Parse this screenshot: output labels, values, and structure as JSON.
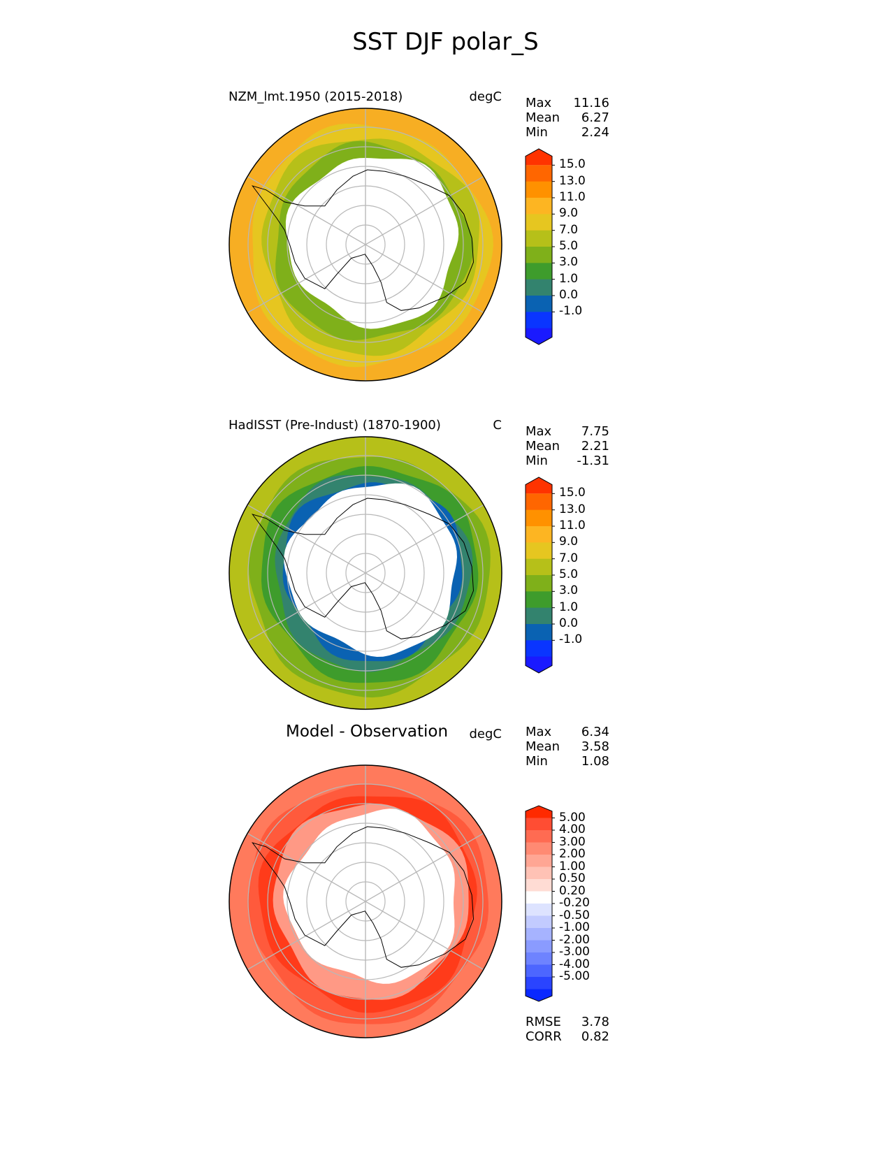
{
  "title": "SST DJF polar_S",
  "panels": [
    {
      "id": "model",
      "title": "NZM_lmt.1950 (2015-2018)",
      "units": "degC",
      "stats": [
        {
          "label": "Max",
          "value": "11.16"
        },
        {
          "label": "Mean",
          "value": "6.27"
        },
        {
          "label": "Min",
          "value": "2.24"
        }
      ],
      "colorbar": {
        "ticks": [
          "15.0",
          "13.0",
          "11.0",
          "9.0",
          "7.0",
          "5.0",
          "3.0",
          "1.0",
          "0.0",
          "-1.0"
        ],
        "colors": [
          "#ff3300",
          "#ff6600",
          "#ff9100",
          "#fdb522",
          "#e6c620",
          "#b6c019",
          "#7fb01a",
          "#3e9c2c",
          "#33836e",
          "#0a62b2",
          "#0a35ff",
          "#1a1aff"
        ]
      },
      "colors": {
        "outer": "#f7ae23",
        "band2": "#e6c620",
        "band3": "#b6c019",
        "band4": "#7fb01a"
      }
    },
    {
      "id": "obs",
      "title": "HadISST (Pre-Indust) (1870-1900)",
      "units": "C",
      "stats": [
        {
          "label": "Max",
          "value": "7.75"
        },
        {
          "label": "Mean",
          "value": "2.21"
        },
        {
          "label": "Min",
          "value": "-1.31"
        }
      ],
      "colorbar": {
        "ticks": [
          "15.0",
          "13.0",
          "11.0",
          "9.0",
          "7.0",
          "5.0",
          "3.0",
          "1.0",
          "0.0",
          "-1.0"
        ],
        "colors": [
          "#ff3300",
          "#ff6600",
          "#ff9100",
          "#fdb522",
          "#e6c620",
          "#b6c019",
          "#7fb01a",
          "#3e9c2c",
          "#33836e",
          "#0a62b2",
          "#0a35ff",
          "#1a1aff"
        ]
      },
      "colors": {
        "outer": "#b6c019",
        "band2": "#7fb01a",
        "band3": "#3e9c2c",
        "band4": "#33836e",
        "ice": "#0a62b2"
      }
    },
    {
      "id": "diff",
      "title": "Model - Observation",
      "units": "degC",
      "stats": [
        {
          "label": "Max",
          "value": "6.34"
        },
        {
          "label": "Mean",
          "value": "3.58"
        },
        {
          "label": "Min",
          "value": "1.08"
        }
      ],
      "colorbar": {
        "ticks": [
          "5.00",
          "4.00",
          "3.00",
          "2.00",
          "1.00",
          "0.50",
          "0.20",
          "-0.20",
          "-0.50",
          "-1.00",
          "-2.00",
          "-3.00",
          "-4.00",
          "-5.00"
        ],
        "colors": [
          "#ff2a00",
          "#ff4d33",
          "#ff6b52",
          "#ff8a73",
          "#ffa694",
          "#ffc2b5",
          "#ffdcd4",
          "#ffffff",
          "#dde3ff",
          "#c2cbff",
          "#a6b3ff",
          "#8a9bff",
          "#6e83ff",
          "#4d66ff",
          "#2a44ff",
          "#0a28ff"
        ]
      },
      "colors": {
        "outer": "#ff7a5c",
        "band2": "#ff5a3c",
        "band3": "#ff3b1a",
        "band4": "#ff9985"
      },
      "metrics": [
        {
          "label": "RMSE",
          "value": "3.78"
        },
        {
          "label": "CORR",
          "value": "0.82"
        }
      ]
    }
  ]
}
